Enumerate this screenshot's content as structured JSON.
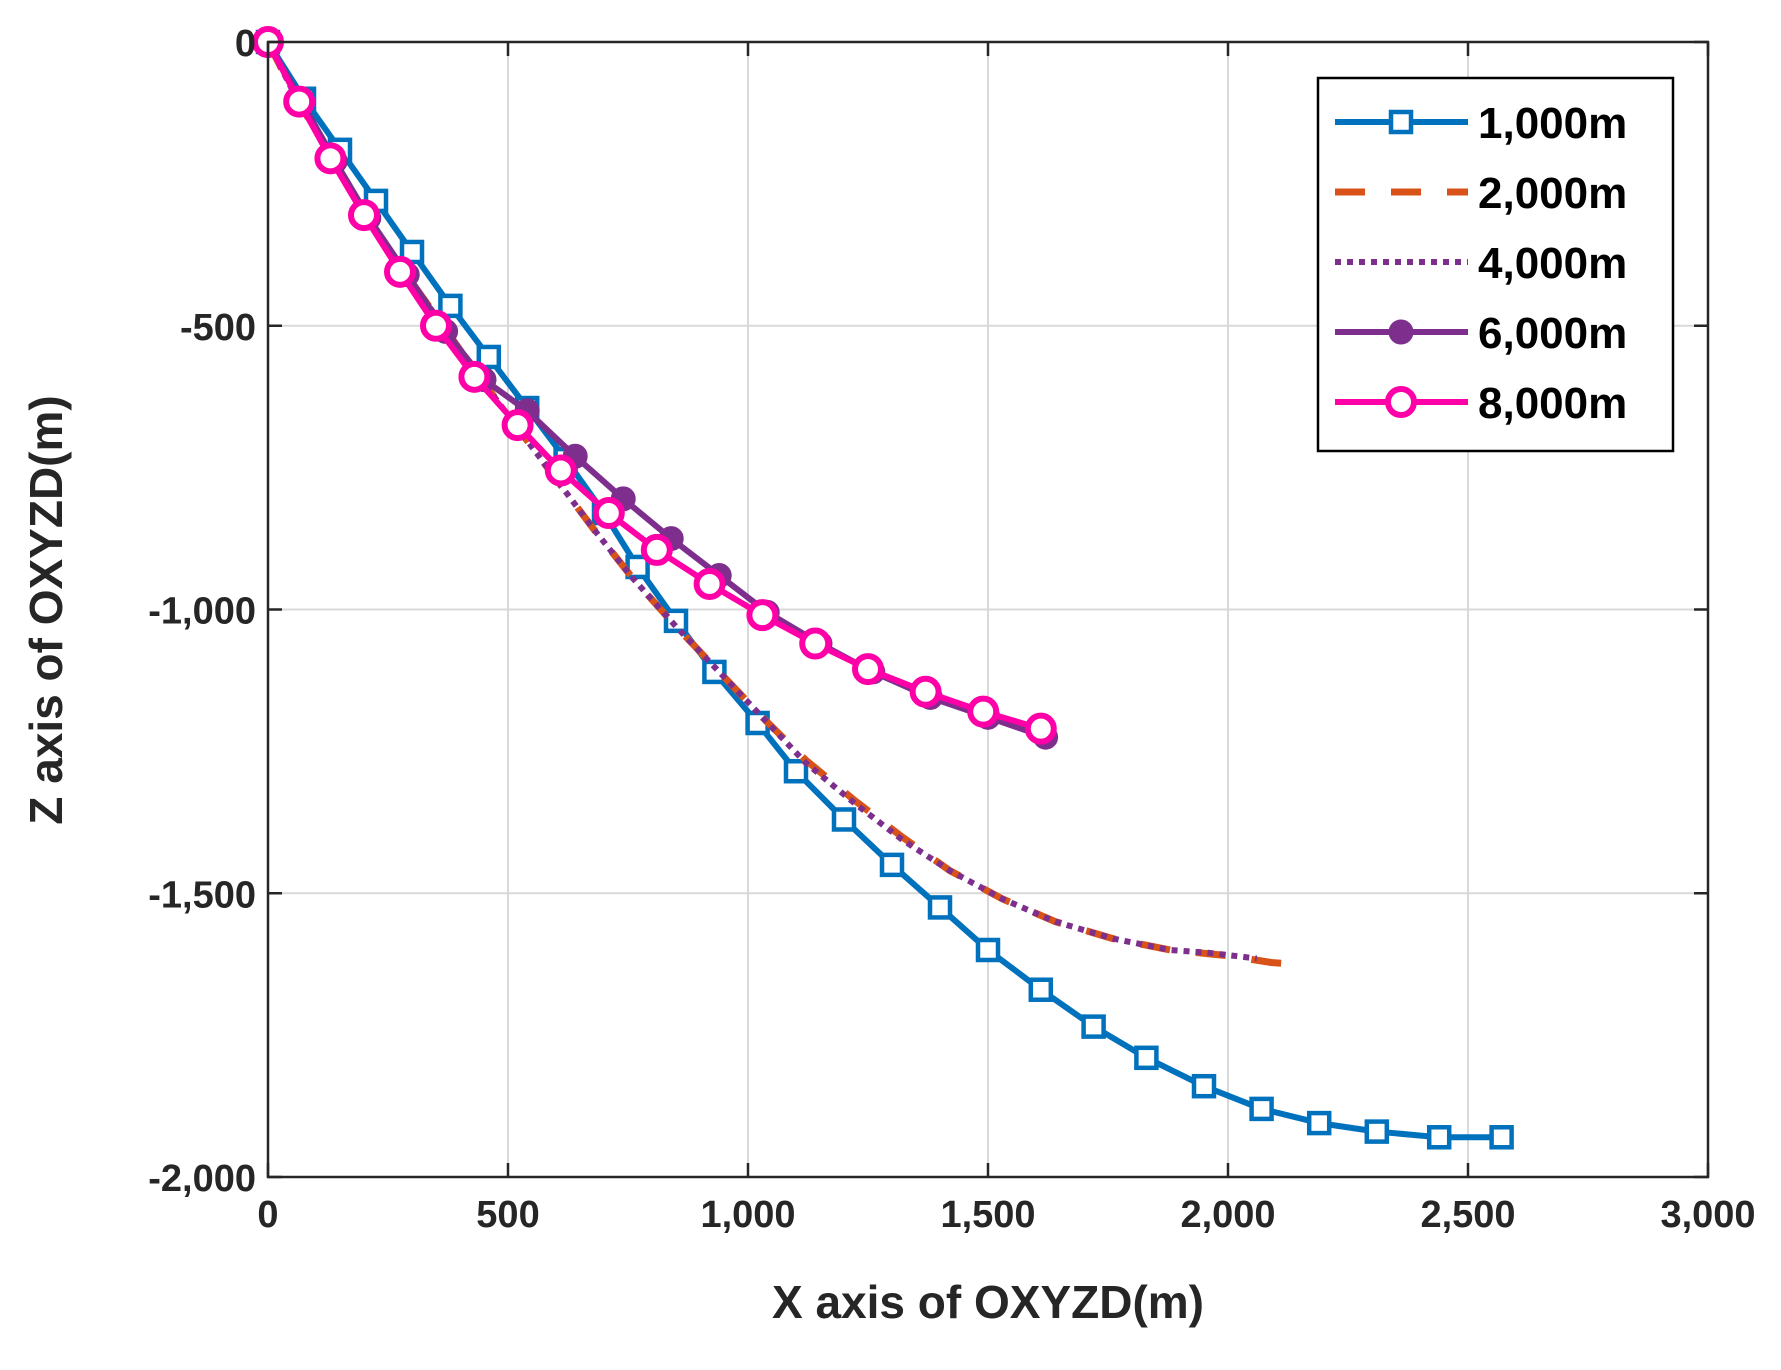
{
  "chart_data": {
    "type": "line",
    "title": "",
    "xlabel": "X axis of OXYZD(m)",
    "ylabel": "Z axis of OXYZD(m)",
    "xlim": [
      0,
      3000
    ],
    "ylim": [
      -2000,
      0
    ],
    "xticks": [
      0,
      500,
      1000,
      1500,
      2000,
      2500,
      3000
    ],
    "xtick_labels": [
      "0",
      "500",
      "1,000",
      "1,500",
      "2,000",
      "2,500",
      "3,000"
    ],
    "yticks": [
      0,
      -500,
      -1000,
      -1500,
      -2000
    ],
    "ytick_labels": [
      "0",
      "-500",
      "-1,000",
      "-1,500",
      "-2,000"
    ],
    "grid": true,
    "legend_position": "top-right",
    "series": [
      {
        "name": "1,000m",
        "color": "#0072BD",
        "style": "solid",
        "marker": "square",
        "x": [
          0,
          75,
          150,
          225,
          300,
          380,
          460,
          540,
          620,
          700,
          770,
          850,
          930,
          1020,
          1100,
          1200,
          1300,
          1400,
          1500,
          1610,
          1720,
          1830,
          1950,
          2070,
          2190,
          2310,
          2440,
          2570
        ],
        "y": [
          0,
          -100,
          -190,
          -280,
          -370,
          -465,
          -555,
          -645,
          -735,
          -830,
          -925,
          -1020,
          -1110,
          -1200,
          -1285,
          -1370,
          -1450,
          -1525,
          -1600,
          -1670,
          -1735,
          -1790,
          -1840,
          -1880,
          -1905,
          -1920,
          -1930,
          -1930
        ]
      },
      {
        "name": "2,000m",
        "color": "#D95319",
        "style": "dashed",
        "marker": "none",
        "x": [
          0,
          60,
          130,
          200,
          280,
          360,
          440,
          520,
          600,
          680,
          760,
          850,
          940,
          1030,
          1120,
          1220,
          1320,
          1420,
          1530,
          1640,
          1760,
          1880,
          2000,
          2090,
          2140
        ],
        "y": [
          0,
          -100,
          -200,
          -300,
          -400,
          -495,
          -590,
          -680,
          -770,
          -860,
          -945,
          -1030,
          -1110,
          -1190,
          -1265,
          -1335,
          -1400,
          -1460,
          -1510,
          -1550,
          -1580,
          -1600,
          -1610,
          -1622,
          -1625
        ]
      },
      {
        "name": "4,000m",
        "color": "#7E2F8E",
        "style": "dotted",
        "marker": "none",
        "x": [
          0,
          60,
          130,
          200,
          280,
          360,
          440,
          520,
          600,
          680,
          760,
          850,
          940,
          1030,
          1120,
          1220,
          1320,
          1420,
          1530,
          1640,
          1760,
          1880,
          1960,
          2060
        ],
        "y": [
          0,
          -100,
          -200,
          -300,
          -400,
          -495,
          -590,
          -680,
          -770,
          -860,
          -945,
          -1030,
          -1110,
          -1190,
          -1270,
          -1340,
          -1405,
          -1460,
          -1510,
          -1550,
          -1580,
          -1600,
          -1605,
          -1615
        ]
      },
      {
        "name": "6,000m",
        "color": "#7E2F8E",
        "style": "solid",
        "marker": "filled-circle",
        "x": [
          0,
          70,
          140,
          210,
          290,
          370,
          450,
          540,
          640,
          740,
          840,
          940,
          1040,
          1150,
          1260,
          1380,
          1500,
          1620
        ],
        "y": [
          0,
          -105,
          -210,
          -310,
          -410,
          -510,
          -595,
          -650,
          -730,
          -805,
          -875,
          -940,
          -1005,
          -1060,
          -1110,
          -1155,
          -1190,
          -1225
        ]
      },
      {
        "name": "8,000m",
        "color": "#FF00A8",
        "style": "solid",
        "marker": "open-circle",
        "x": [
          0,
          65,
          130,
          200,
          275,
          350,
          430,
          520,
          610,
          710,
          810,
          920,
          1030,
          1140,
          1250,
          1370,
          1490,
          1610
        ],
        "y": [
          0,
          -105,
          -205,
          -305,
          -405,
          -500,
          -590,
          -675,
          -755,
          -830,
          -895,
          -955,
          -1010,
          -1060,
          -1105,
          -1145,
          -1180,
          -1210
        ]
      }
    ]
  }
}
